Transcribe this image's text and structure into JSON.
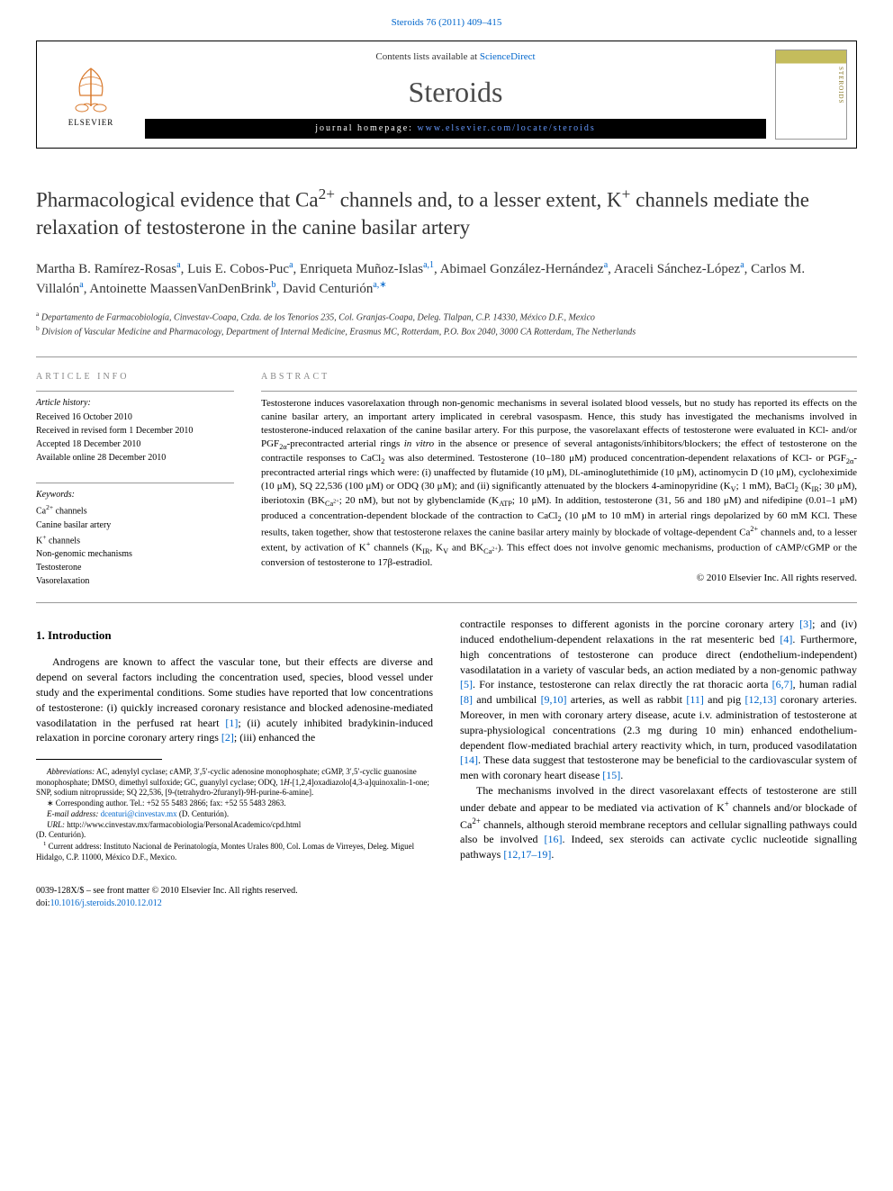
{
  "citation": "Steroids 76 (2011) 409–415",
  "header": {
    "contents_prefix": "Contents lists available at ",
    "contents_link": "ScienceDirect",
    "journal": "Steroids",
    "homepage_prefix": "journal homepage: ",
    "homepage_url": "www.elsevier.com/locate/steroids",
    "elsevier": "ELSEVIER",
    "cover_label": "STEROIDS"
  },
  "title_html": "Pharmacological evidence that Ca<sup>2+</sup> channels and, to a lesser extent, K<sup>+</sup> channels mediate the relaxation of testosterone in the canine basilar artery",
  "authors_html": "Martha B. Ramírez-Rosas<sup>a</sup>, Luis E. Cobos-Puc<sup>a</sup>, Enriqueta Muñoz-Islas<sup>a,1</sup>, Abimael González-Hernández<sup>a</sup>, Araceli Sánchez-López<sup>a</sup>, Carlos M. Villalón<sup>a</sup>, Antoinette MaassenVanDenBrink<sup>b</sup>, David Centurión<sup>a,∗</sup>",
  "affiliations": [
    {
      "sup": "a",
      "text": "Departamento de Farmacobiología, Cinvestav-Coapa, Czda. de los Tenorios 235, Col. Granjas-Coapa, Deleg. Tlalpan, C.P. 14330, México D.F., Mexico"
    },
    {
      "sup": "b",
      "text": "Division of Vascular Medicine and Pharmacology, Department of Internal Medicine, Erasmus MC, Rotterdam, P.O. Box 2040, 3000 CA Rotterdam, The Netherlands"
    }
  ],
  "article_info_heading": "article info",
  "history_heading": "Article history:",
  "history": [
    "Received 16 October 2010",
    "Received in revised form 1 December 2010",
    "Accepted 18 December 2010",
    "Available online 28 December 2010"
  ],
  "keywords_heading": "Keywords:",
  "keywords_html": [
    "Ca<sup>2+</sup> channels",
    "Canine basilar artery",
    "K<sup>+</sup> channels",
    "Non-genomic mechanisms",
    "Testosterone",
    "Vasorelaxation"
  ],
  "abstract_heading": "abstract",
  "abstract_html": "Testosterone induces vasorelaxation through non-genomic mechanisms in several isolated blood vessels, but no study has reported its effects on the canine basilar artery, an important artery implicated in cerebral vasospasm. Hence, this study has investigated the mechanisms involved in testosterone-induced relaxation of the canine basilar artery. For this purpose, the vasorelaxant effects of testosterone were evaluated in KCl- and/or PGF<sub>2α</sub>-precontracted arterial rings <i>in vitro</i> in the absence or presence of several antagonists/inhibitors/blockers; the effect of testosterone on the contractile responses to CaCl<sub>2</sub> was also determined. Testosterone (10–180 μM) produced concentration-dependent relaxations of KCl- or PGF<sub>2α</sub>-precontracted arterial rings which were: (i) unaffected by flutamide (10 μM), <small>DL</small>-aminoglutethimide (10 μM), actinomycin D (10 μM), cycloheximide (10 μM), SQ 22,536 (100 μM) or ODQ (30 μM); and (ii) significantly attenuated by the blockers 4-aminopyridine (K<sub>V</sub>; 1 mM), BaCl<sub>2</sub> (K<sub>IR</sub>; 30 μM), iberiotoxin (BK<sub>Ca<sup>2+</sup></sub>; 20 nM), but not by glybenclamide (K<sub>ATP</sub>; 10 μM). In addition, testosterone (31, 56 and 180 μM) and nifedipine (0.01–1 μM) produced a concentration-dependent blockade of the contraction to CaCl<sub>2</sub> (10 μM to 10 mM) in arterial rings depolarized by 60 mM KCl. These results, taken together, show that testosterone relaxes the canine basilar artery mainly by blockade of voltage-dependent Ca<sup>2+</sup> channels and, to a lesser extent, by activation of K<sup>+</sup> channels (K<sub>IR</sub>, K<sub>V</sub> and BK<sub>Ca<sup>2+</sup></sub>). This effect does not involve genomic mechanisms, production of cAMP/cGMP or the conversion of testosterone to 17β-estradiol.",
  "abstract_copyright": "© 2010 Elsevier Inc. All rights reserved.",
  "intro_heading": "1. Introduction",
  "intro_col1_html": "Androgens are known to affect the vascular tone, but their effects are diverse and depend on several factors including the concentration used, species, blood vessel under study and the experimental conditions. Some studies have reported that low concentrations of testosterone: (i) quickly increased coronary resistance and blocked adenosine-mediated vasodilatation in the perfused rat heart <a class='cite-link'>[1]</a>; (ii) acutely inhibited bradykinin-induced relaxation in porcine coronary artery rings <a class='cite-link'>[2]</a>; (iii) enhanced the",
  "intro_col2_p1_html": "contractile responses to different agonists in the porcine coronary artery <a class='cite-link'>[3]</a>; and (iv) induced endothelium-dependent relaxations in the rat mesenteric bed <a class='cite-link'>[4]</a>. Furthermore, high concentrations of testosterone can produce direct (endothelium-independent) vasodilatation in a variety of vascular beds, an action mediated by a non-genomic pathway <a class='cite-link'>[5]</a>. For instance, testosterone can relax directly the rat thoracic aorta <a class='cite-link'>[6,7]</a>, human radial <a class='cite-link'>[8]</a> and umbilical <a class='cite-link'>[9,10]</a> arteries, as well as rabbit <a class='cite-link'>[11]</a> and pig <a class='cite-link'>[12,13]</a> coronary arteries. Moreover, in men with coronary artery disease, acute i.v. administration of testosterone at supra-physiological concentrations (2.3 mg during 10 min) enhanced endothelium-dependent flow-mediated brachial artery reactivity which, in turn, produced vasodilatation <a class='cite-link'>[14]</a>. These data suggest that testosterone may be beneficial to the cardiovascular system of men with coronary heart disease <a class='cite-link'>[15]</a>.",
  "intro_col2_p2_html": "The mechanisms involved in the direct vasorelaxant effects of testosterone are still under debate and appear to be mediated via activation of K<sup>+</sup> channels and/or blockade of Ca<sup>2+</sup> channels, although steroid membrane receptors and cellular signalling pathways could also be involved <a class='cite-link'>[16]</a>. Indeed, sex steroids can activate cyclic nucleotide signalling pathways <a class='cite-link'>[12,17–19]</a>.",
  "footnotes": {
    "abbrev_html": "<i>Abbreviations:</i> AC, adenylyl cyclase; cAMP, 3′,5′-cyclic adenosine monophosphate; cGMP, 3′,5′-cyclic guanosine monophosphate; DMSO, dimethyl sulfoxide; GC, guanylyl cyclase; ODQ, 1<i>H</i>-[1,2,4]oxadiazolo[4,3-a]quinoxalin-1-one; SNP, sodium nitroprusside; SQ 22,536, [9-(tetrahydro-2furanyl)-9H-purine-6-amine].",
    "corresponding": "∗ Corresponding author. Tel.: +52 55 5483 2866; fax: +52 55 5483 2863.",
    "email_label": "E-mail address: ",
    "email": "dcenturi@cinvestav.mx",
    "email_person": " (D. Centurión).",
    "url_label": "URL: ",
    "url": "http://www.cinvestav.mx/farmacobiologia/PersonalAcademico/cpd.html",
    "url_person": "(D. Centurión).",
    "note1": "Current address: Instituto Nacional de Perinatología, Montes Urales 800, Col. Lomas de Virreyes, Deleg. Miguel Hidalgo, C.P. 11000, México D.F., Mexico."
  },
  "bottom": {
    "line1": "0039-128X/$ – see front matter © 2010 Elsevier Inc. All rights reserved.",
    "doi_label": "doi:",
    "doi": "10.1016/j.steroids.2010.12.012"
  },
  "colors": {
    "link": "#0066cc",
    "journal": "#4a4a4a"
  }
}
